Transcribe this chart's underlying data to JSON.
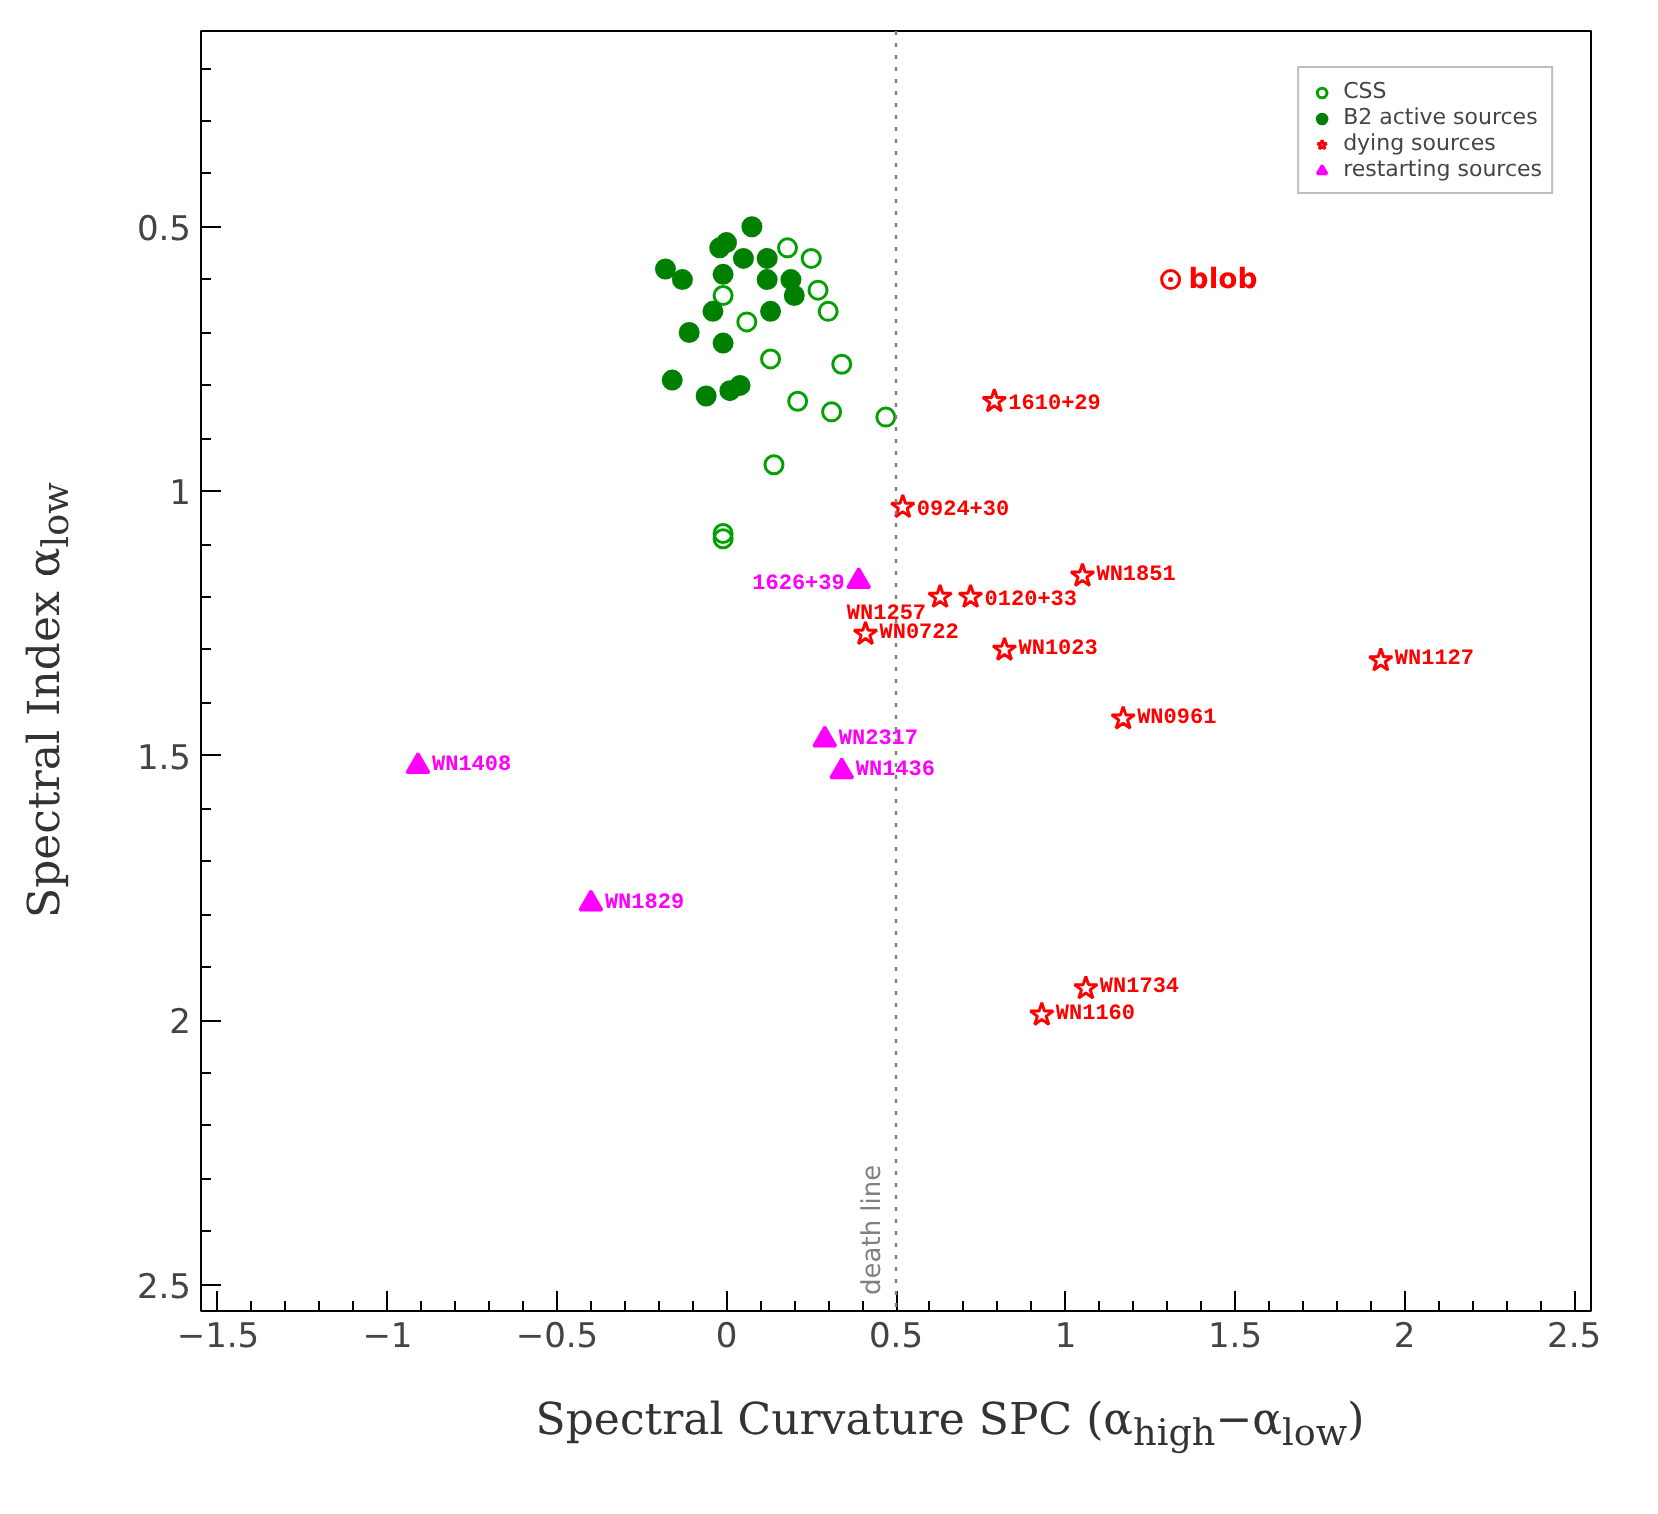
{
  "chart_data": {
    "type": "scatter",
    "xlabel": "Spectral Curvature SPC (α$_{high}$−α$_{low}$)",
    "ylabel": "Spectral Index α$_{low}$",
    "xlim": [
      -1.55,
      2.55
    ],
    "ylim": [
      2.55,
      0.13
    ],
    "xticks": [
      -1.5,
      {
        "value": -1,
        "label": "−1"
      },
      {
        "value": -0.5,
        "label": "−0.5"
      },
      0,
      0.5,
      1,
      1.5,
      2,
      2.5
    ],
    "yticks": [
      0.5,
      1,
      1.5,
      2,
      2.5
    ],
    "grid": false,
    "legend": "top right",
    "series": [
      {
        "name": "CSS",
        "color": "#00a000",
        "marker": "circle",
        "x": [
          0.18,
          0.25,
          -0.01,
          0.27,
          0.06,
          0.3,
          0.13,
          0.34,
          0.21,
          0.31,
          0.47,
          0.14,
          -0.01,
          -0.01
        ],
        "values": [
          0.54,
          0.56,
          0.63,
          0.62,
          0.68,
          0.66,
          0.75,
          0.76,
          0.83,
          0.85,
          0.86,
          0.95,
          1.08,
          1.09
        ]
      },
      {
        "name": "B2 active sources",
        "color": "#008000",
        "marker": "circle",
        "x": [
          0.075,
          0.0,
          -0.02,
          -0.18,
          -0.13,
          0.05,
          0.12,
          -0.01,
          0.12,
          0.19,
          0.2,
          -0.04,
          0.13,
          -0.11,
          -0.01,
          -0.16,
          -0.06,
          0.01,
          0.04
        ],
        "values": [
          0.5,
          0.53,
          0.54,
          0.58,
          0.6,
          0.56,
          0.56,
          0.59,
          0.6,
          0.6,
          0.63,
          0.66,
          0.66,
          0.7,
          0.72,
          0.79,
          0.82,
          0.81,
          0.8
        ]
      },
      {
        "name": "dying sources",
        "color": "#ff0000",
        "marker": "star",
        "x": [
          0.79,
          0.52,
          1.05,
          0.63,
          0.72,
          0.41,
          0.82,
          1.93,
          1.17,
          1.06,
          0.93
        ],
        "values": [
          0.83,
          1.03,
          1.16,
          1.2,
          1.2,
          1.27,
          1.3,
          1.32,
          1.43,
          1.94,
          1.99
        ]
      },
      {
        "name": "restarting sources",
        "color": "#ff00ff",
        "marker": "triangle",
        "x": [
          0.39,
          0.29,
          0.34,
          -0.91,
          -0.4
        ],
        "values": [
          1.17,
          1.47,
          1.53,
          1.52,
          1.78
        ]
      },
      {
        "name": "blob",
        "color": "#ff0000",
        "marker": "circle",
        "x": [
          1.31
        ],
        "values": [
          0.6
        ]
      }
    ],
    "ref_lines": [
      {
        "axis": "x",
        "value": 0.5,
        "label": "death line",
        "color": "#808080",
        "line_style": "dotted"
      }
    ],
    "annotations": [
      {
        "text": "1610+29",
        "x": 0.79,
        "y": 0.83
      },
      {
        "text": "0924+30",
        "x": 0.52,
        "y": 1.03
      },
      {
        "text": "WN1851",
        "x": 1.05,
        "y": 1.16
      },
      {
        "text": "WN1257",
        "x": 0.63,
        "y": 1.2
      },
      {
        "text": "0120+33",
        "x": 0.72,
        "y": 1.2
      },
      {
        "text": "WN0722",
        "x": 0.41,
        "y": 1.27
      },
      {
        "text": "WN1023",
        "x": 0.82,
        "y": 1.3
      },
      {
        "text": "WN1127",
        "x": 1.93,
        "y": 1.32
      },
      {
        "text": "WN0961",
        "x": 1.17,
        "y": 1.43
      },
      {
        "text": "WN1734",
        "x": 1.06,
        "y": 1.94
      },
      {
        "text": "WN1160",
        "x": 0.93,
        "y": 1.99
      },
      {
        "text": "1626+39",
        "x": 0.39,
        "y": 1.17
      },
      {
        "text": "WN2317",
        "x": 0.29,
        "y": 1.47
      },
      {
        "text": "WN1436",
        "x": 0.34,
        "y": 1.53
      },
      {
        "text": "WN1408",
        "x": -0.91,
        "y": 1.52
      },
      {
        "text": "WN1829",
        "x": -0.4,
        "y": 1.78
      }
    ]
  }
}
